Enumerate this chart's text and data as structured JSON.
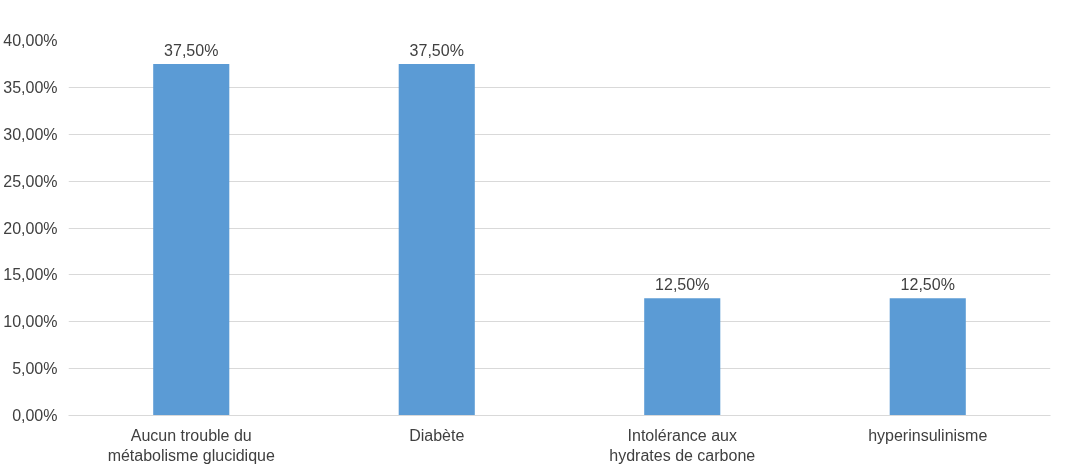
{
  "chart_data": {
    "type": "bar",
    "categories": [
      "Aucun trouble du métabolisme glucidique",
      "Diabète",
      "Intolérance aux hydrates de carbone",
      "hyperinsulinisme"
    ],
    "values": [
      37.5,
      37.5,
      12.5,
      12.5
    ],
    "color": "#5b9bd5",
    "value_labels": [
      "37,50%",
      "37,50%",
      "12,50%",
      "12,50%"
    ],
    "ylim": [
      0,
      40
    ],
    "yticks": [
      {
        "value": 0,
        "label": "0,00%"
      },
      {
        "value": 5,
        "label": "5,00%"
      },
      {
        "value": 10,
        "label": "10,00%"
      },
      {
        "value": 15,
        "label": "15,00%"
      },
      {
        "value": 20,
        "label": "20,00%"
      },
      {
        "value": 25,
        "label": "25,00%"
      },
      {
        "value": 30,
        "label": "30,00%"
      },
      {
        "value": 35,
        "label": "35,00%"
      },
      {
        "value": 40,
        "label": "40,00%"
      }
    ],
    "grid": "y"
  }
}
